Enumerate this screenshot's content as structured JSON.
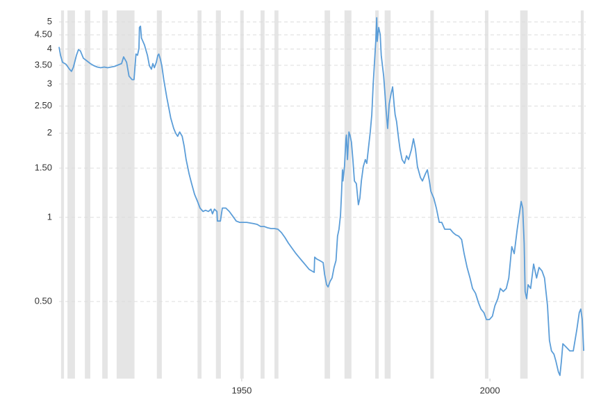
{
  "chart_data": {
    "type": "line",
    "log_scale_y": true,
    "grid": true,
    "color": "#5b9dd8",
    "shade_color": "#e5e5e5",
    "xlim": [
      1913.2,
      2019.3
    ],
    "xticks": [
      1950,
      2000
    ],
    "ylim": [
      0.265,
      5.5
    ],
    "yticks": [
      {
        "value": 0.5,
        "label": "0.50"
      },
      1,
      {
        "value": 1.5,
        "label": "1.50"
      },
      2,
      {
        "value": 2.5,
        "label": "2.50"
      },
      3,
      {
        "value": 3.5,
        "label": "3.50"
      },
      4,
      {
        "value": 4.5,
        "label": "4.50"
      },
      5
    ],
    "shaded_periods": [
      [
        1913.6,
        1914.2
      ],
      [
        1914.9,
        1916.4
      ],
      [
        1918.4,
        1919.5
      ],
      [
        1921.9,
        1923.0
      ],
      [
        1924.8,
        1928.4
      ],
      [
        1932.9,
        1933.9
      ],
      [
        1941.1,
        1941.9
      ],
      [
        1944.8,
        1945.8
      ],
      [
        1949.7,
        1950.4
      ],
      [
        1953.8,
        1954.6
      ],
      [
        1956.6,
        1957.4
      ],
      [
        1966.7,
        1967.8
      ],
      [
        1970.7,
        1972.1
      ],
      [
        1976.9,
        1977.6
      ],
      [
        1978.8,
        1980.0
      ],
      [
        1988.0,
        1988.7
      ],
      [
        1999.0,
        1999.7
      ],
      [
        2006.1,
        2007.6
      ],
      [
        2018.3,
        2018.9
      ]
    ],
    "x": [
      1913.2,
      1913.5,
      1913.9,
      1914.6,
      1915.3,
      1915.7,
      1916.1,
      1916.7,
      1917.1,
      1917.5,
      1918.1,
      1918.8,
      1919.5,
      1920.2,
      1920.9,
      1921.6,
      1922.3,
      1923.0,
      1923.7,
      1924.4,
      1925.1,
      1925.8,
      1926.2,
      1926.8,
      1927.3,
      1927.9,
      1928.3,
      1928.7,
      1929.0,
      1929.3,
      1929.4,
      1929.6,
      1929.8,
      1930.4,
      1931.0,
      1931.4,
      1931.8,
      1932.1,
      1932.4,
      1932.8,
      1933.1,
      1933.3,
      1933.6,
      1933.9,
      1934.3,
      1934.9,
      1935.3,
      1935.7,
      1936.3,
      1936.7,
      1937.1,
      1937.5,
      1938.0,
      1938.4,
      1938.8,
      1939.4,
      1939.9,
      1940.5,
      1941.1,
      1941.6,
      1942.2,
      1942.7,
      1943.3,
      1943.8,
      1944.1,
      1944.5,
      1945.0,
      1945.1,
      1945.7,
      1946.1,
      1946.8,
      1947.5,
      1948.2,
      1948.9,
      1949.6,
      1950.3,
      1951.0,
      1951.7,
      1952.4,
      1953.1,
      1953.8,
      1954.5,
      1955.2,
      1955.9,
      1956.6,
      1957.3,
      1958.0,
      1958.7,
      1959.4,
      1960.1,
      1960.8,
      1961.5,
      1962.2,
      1962.9,
      1963.6,
      1964.6,
      1964.7,
      1965.1,
      1965.7,
      1966.4,
      1966.7,
      1967.1,
      1967.4,
      1967.8,
      1968.2,
      1968.6,
      1969.0,
      1969.3,
      1969.6,
      1969.9,
      1970.1,
      1970.3,
      1970.4,
      1970.7,
      1971.0,
      1971.1,
      1971.3,
      1971.6,
      1971.8,
      1972.1,
      1972.4,
      1972.7,
      1973.1,
      1973.5,
      1973.8,
      1974.1,
      1974.5,
      1974.9,
      1975.2,
      1975.5,
      1975.9,
      1976.2,
      1976.5,
      1976.7,
      1977.0,
      1977.2,
      1977.3,
      1977.6,
      1977.9,
      1978.1,
      1978.6,
      1978.8,
      1979.1,
      1979.4,
      1979.7,
      1980.1,
      1980.4,
      1980.7,
      1980.9,
      1981.2,
      1981.6,
      1981.9,
      1982.3,
      1982.8,
      1983.2,
      1983.6,
      1984.2,
      1984.6,
      1985.0,
      1985.4,
      1986.0,
      1986.4,
      1987.0,
      1987.4,
      1987.8,
      1988.1,
      1988.7,
      1989.2,
      1989.8,
      1990.3,
      1990.9,
      1991.5,
      1992.0,
      1992.6,
      1993.1,
      1993.7,
      1994.3,
      1994.8,
      1995.4,
      1996.0,
      1996.5,
      1997.1,
      1997.7,
      1998.2,
      1998.8,
      1999.3,
      1999.9,
      2000.5,
      2001.0,
      2001.6,
      2002.1,
      2002.7,
      2003.3,
      2003.8,
      2004.4,
      2004.9,
      2005.5,
      2006.1,
      2006.3,
      2006.6,
      2006.9,
      2007.1,
      2007.4,
      2007.7,
      2008.2,
      2008.8,
      2009.4,
      2009.9,
      2010.5,
      2011.0,
      2011.6,
      2012.0,
      2012.4,
      2012.9,
      2013.3,
      2013.8,
      2014.1,
      2014.4,
      2014.7,
      2015.4,
      2016.1,
      2016.8,
      2017.5,
      2018.0,
      2018.3,
      2018.6,
      2018.9
    ],
    "values": [
      4.07,
      3.8,
      3.59,
      3.53,
      3.39,
      3.33,
      3.45,
      3.8,
      3.98,
      3.94,
      3.71,
      3.63,
      3.55,
      3.49,
      3.45,
      3.43,
      3.45,
      3.43,
      3.45,
      3.47,
      3.51,
      3.55,
      3.75,
      3.59,
      3.2,
      3.11,
      3.11,
      3.84,
      3.8,
      4.02,
      4.78,
      4.83,
      4.38,
      4.14,
      3.8,
      3.49,
      3.39,
      3.55,
      3.43,
      3.59,
      3.8,
      3.84,
      3.69,
      3.49,
      3.11,
      2.69,
      2.47,
      2.27,
      2.08,
      2.0,
      1.95,
      2.02,
      1.95,
      1.8,
      1.61,
      1.43,
      1.32,
      1.21,
      1.14,
      1.08,
      1.05,
      1.06,
      1.05,
      1.07,
      1.03,
      1.07,
      1.05,
      0.97,
      0.97,
      1.08,
      1.08,
      1.05,
      1.01,
      0.97,
      0.96,
      0.96,
      0.96,
      0.955,
      0.95,
      0.944,
      0.928,
      0.928,
      0.918,
      0.912,
      0.912,
      0.907,
      0.882,
      0.847,
      0.809,
      0.777,
      0.747,
      0.721,
      0.697,
      0.674,
      0.651,
      0.636,
      0.721,
      0.71,
      0.701,
      0.689,
      0.625,
      0.574,
      0.564,
      0.59,
      0.607,
      0.662,
      0.701,
      0.857,
      0.907,
      1.02,
      1.21,
      1.48,
      1.35,
      1.52,
      1.91,
      1.97,
      1.61,
      2.02,
      1.97,
      1.86,
      1.61,
      1.35,
      1.32,
      1.11,
      1.17,
      1.35,
      1.52,
      1.61,
      1.56,
      1.75,
      2.02,
      2.33,
      3.02,
      3.48,
      4.26,
      5.18,
      4.26,
      4.78,
      4.51,
      3.8,
      3.2,
      2.85,
      2.4,
      2.08,
      2.54,
      2.77,
      2.93,
      2.54,
      2.33,
      2.2,
      1.91,
      1.75,
      1.61,
      1.56,
      1.66,
      1.61,
      1.75,
      1.91,
      1.75,
      1.52,
      1.39,
      1.35,
      1.43,
      1.48,
      1.35,
      1.24,
      1.17,
      1.08,
      0.96,
      0.96,
      0.907,
      0.907,
      0.907,
      0.882,
      0.867,
      0.857,
      0.833,
      0.742,
      0.662,
      0.607,
      0.557,
      0.535,
      0.495,
      0.47,
      0.456,
      0.431,
      0.431,
      0.443,
      0.483,
      0.512,
      0.557,
      0.543,
      0.557,
      0.607,
      0.786,
      0.742,
      0.907,
      1.08,
      1.14,
      1.08,
      0.809,
      0.543,
      0.512,
      0.574,
      0.557,
      0.681,
      0.607,
      0.662,
      0.643,
      0.607,
      0.483,
      0.363,
      0.333,
      0.324,
      0.306,
      0.28,
      0.272,
      0.306,
      0.353,
      0.343,
      0.333,
      0.333,
      0.395,
      0.456,
      0.47,
      0.431,
      0.333
    ]
  }
}
